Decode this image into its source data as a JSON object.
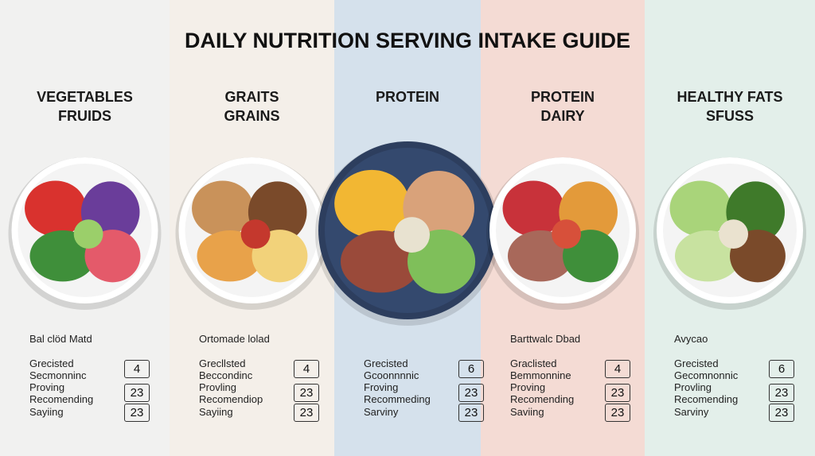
{
  "title": "DAILY NUTRITION SERVING INTAKE GUIDE",
  "columns": [
    {
      "heading": [
        "VEGETABLES",
        "FRUIDS"
      ],
      "subtitle": "Bal clöd Matd",
      "rows": [
        {
          "lines": [
            "Grecisted",
            "Secmonninc"
          ],
          "value": 4
        },
        {
          "lines": [
            "Proving",
            "Recomending"
          ],
          "value": 23
        },
        {
          "lines": [
            "Sayiing"
          ],
          "value": 23
        }
      ]
    },
    {
      "heading": [
        "GRAITS",
        "GRAINS"
      ],
      "subtitle": "Ortomade lolad",
      "rows": [
        {
          "lines": [
            "Grecllsted",
            "Beccondinc"
          ],
          "value": 4
        },
        {
          "lines": [
            "Provling",
            "Recomendiop"
          ],
          "value": 23
        },
        {
          "lines": [
            "Sayiing"
          ],
          "value": 23
        }
      ]
    },
    {
      "heading": [
        "PROTEIN"
      ],
      "rows": [
        {
          "lines": [
            "Grecisted",
            "Gcoonnnnic"
          ],
          "value": 6
        },
        {
          "lines": [
            "Froving",
            "Recommeding"
          ],
          "value": 23
        },
        {
          "lines": [
            "Sarviny"
          ],
          "value": 23
        }
      ]
    },
    {
      "heading": [
        "PROTEIN",
        "DAIRY"
      ],
      "subtitle": "Barttwalc Dbad",
      "rows": [
        {
          "lines": [
            "Graclisted",
            "Bemmonnine"
          ],
          "value": 4
        },
        {
          "lines": [
            "Proving",
            "Recomending"
          ],
          "value": 23
        },
        {
          "lines": [
            "Saviing"
          ],
          "value": 23
        }
      ]
    },
    {
      "heading": [
        "HEALTHY FATS",
        "SFUSS"
      ],
      "subtitle": "Avycao",
      "rows": [
        {
          "lines": [
            "Grecisted",
            "Gecomnonnic"
          ],
          "value": 6
        },
        {
          "lines": [
            "Provling",
            "Recomending"
          ],
          "value": 23
        },
        {
          "lines": [
            "Sarviny"
          ],
          "value": 23
        }
      ]
    }
  ]
}
